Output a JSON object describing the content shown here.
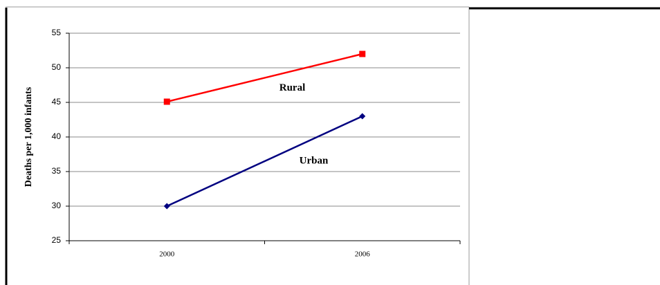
{
  "chart_data": {
    "type": "line",
    "y_label": "Deaths per 1,000 infants",
    "categories": [
      "2000",
      "2006"
    ],
    "series": [
      {
        "name": "Rural",
        "color": "#ff0000",
        "marker": "square",
        "values": [
          45.1,
          52
        ]
      },
      {
        "name": "Urban",
        "color": "#000080",
        "marker": "diamond",
        "values": [
          30,
          43
        ]
      }
    ],
    "ylim": [
      25,
      55
    ],
    "yticks": [
      25,
      30,
      35,
      40,
      45,
      50,
      55
    ],
    "grid": true
  }
}
